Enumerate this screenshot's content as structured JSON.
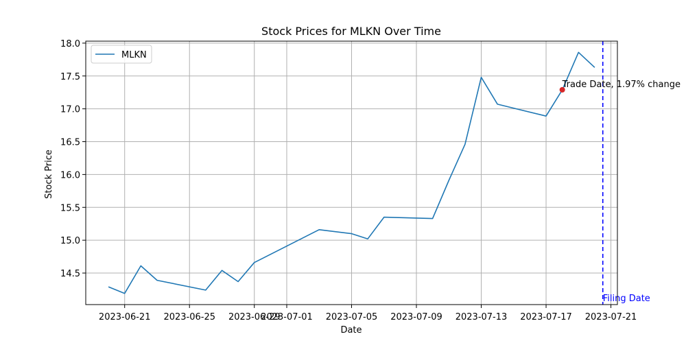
{
  "chart_data": {
    "type": "line",
    "title": "Stock Prices for MLKN Over Time",
    "xlabel": "Date",
    "ylabel": "Stock Price",
    "x_ticks": [
      "2023-06-21",
      "2023-06-25",
      "2023-06-29",
      "2023-07-01",
      "2023-07-05",
      "2023-07-09",
      "2023-07-13",
      "2023-07-17",
      "2023-07-21"
    ],
    "y_ticks": [
      14.5,
      15.0,
      15.5,
      16.0,
      16.5,
      17.0,
      17.5,
      18.0
    ],
    "y_tick_labels": [
      "14.5",
      "15.0",
      "15.5",
      "16.0",
      "16.5",
      "17.0",
      "17.5",
      "18.0"
    ],
    "xlim": [
      "2023-06-18",
      "2023-07-21"
    ],
    "ylim": [
      14.02,
      18.03
    ],
    "grid": true,
    "legend_position": "top-left",
    "series": [
      {
        "name": "MLKN",
        "color": "#1f77b4",
        "points": [
          {
            "date": "2023-06-20",
            "value": 14.29
          },
          {
            "date": "2023-06-21",
            "value": 14.19
          },
          {
            "date": "2023-06-22",
            "value": 14.61
          },
          {
            "date": "2023-06-23",
            "value": 14.39
          },
          {
            "date": "2023-06-26",
            "value": 14.24
          },
          {
            "date": "2023-06-27",
            "value": 14.54
          },
          {
            "date": "2023-06-28",
            "value": 14.37
          },
          {
            "date": "2023-06-29",
            "value": 14.66
          },
          {
            "date": "2023-07-03",
            "value": 15.16
          },
          {
            "date": "2023-07-05",
            "value": 15.1
          },
          {
            "date": "2023-07-06",
            "value": 15.02
          },
          {
            "date": "2023-07-07",
            "value": 15.35
          },
          {
            "date": "2023-07-10",
            "value": 15.33
          },
          {
            "date": "2023-07-11",
            "value": 15.91
          },
          {
            "date": "2023-07-12",
            "value": 16.46
          },
          {
            "date": "2023-07-13",
            "value": 17.48
          },
          {
            "date": "2023-07-14",
            "value": 17.07
          },
          {
            "date": "2023-07-17",
            "value": 16.89
          },
          {
            "date": "2023-07-18",
            "value": 17.29
          },
          {
            "date": "2023-07-19",
            "value": 17.86
          },
          {
            "date": "2023-07-20",
            "value": 17.63
          }
        ]
      }
    ],
    "trade_marker": {
      "date": "2023-07-18",
      "value": 17.29,
      "color": "#d62728",
      "label": "Trade Date, 1.97% change"
    },
    "filing_line": {
      "date": "2023-07-21",
      "color": "#0000ff",
      "label": "Filing Date"
    }
  }
}
